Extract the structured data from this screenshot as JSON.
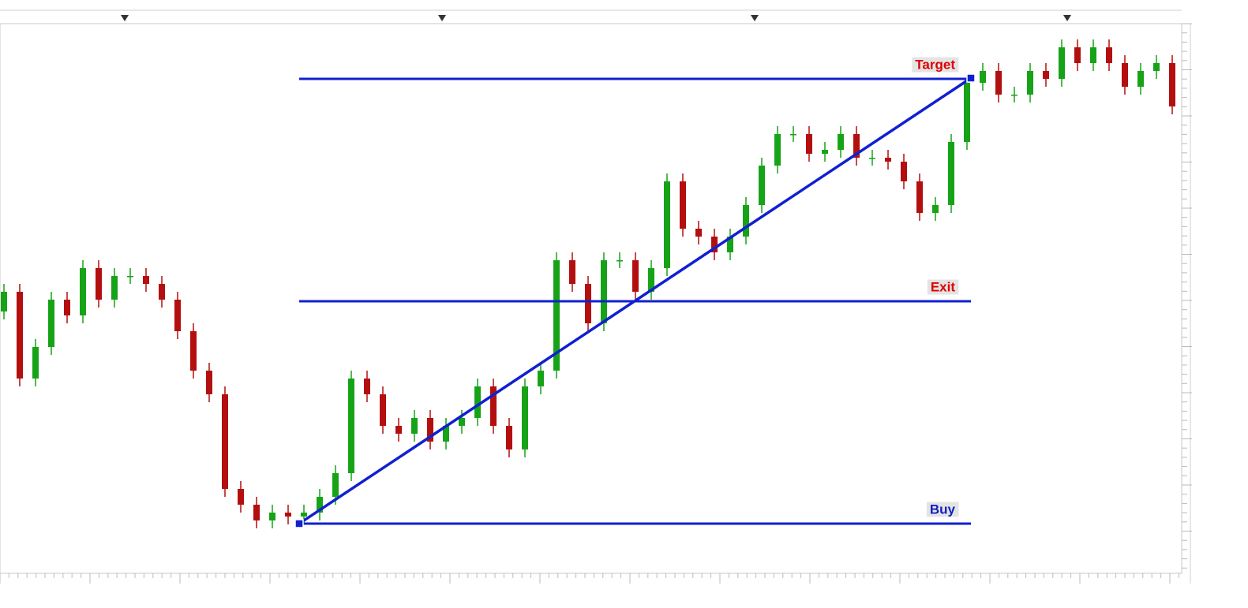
{
  "chart_data": {
    "type": "candlestick",
    "up_color": "#17a317",
    "down_color": "#b30f0f",
    "ylim": [
      0,
      695
    ],
    "open": [
      330,
      355,
      245,
      285,
      345,
      325,
      385,
      345,
      375,
      375,
      365,
      345,
      305,
      255,
      225,
      105,
      85,
      65,
      75,
      70,
      75,
      95,
      125,
      245,
      225,
      185,
      175,
      195,
      165,
      185,
      195,
      235,
      185,
      155,
      235,
      255,
      395,
      365,
      315,
      395,
      395,
      355,
      385,
      495,
      435,
      425,
      405,
      425,
      465,
      515,
      555,
      555,
      530,
      535,
      555,
      525,
      525,
      520,
      495,
      455,
      465,
      545,
      620,
      635,
      605,
      605,
      635,
      625,
      665,
      645,
      665,
      645,
      615,
      635,
      645
    ],
    "high": [
      365,
      365,
      295,
      355,
      355,
      395,
      395,
      385,
      385,
      385,
      375,
      355,
      315,
      265,
      235,
      115,
      95,
      85,
      85,
      85,
      105,
      135,
      255,
      255,
      235,
      195,
      205,
      205,
      195,
      205,
      245,
      245,
      195,
      245,
      265,
      405,
      405,
      375,
      405,
      405,
      405,
      395,
      505,
      505,
      445,
      435,
      435,
      475,
      525,
      565,
      565,
      565,
      545,
      565,
      565,
      535,
      535,
      530,
      505,
      475,
      555,
      630,
      645,
      645,
      615,
      645,
      645,
      675,
      675,
      675,
      675,
      655,
      645,
      655,
      655
    ],
    "low": [
      320,
      235,
      235,
      275,
      315,
      315,
      335,
      335,
      365,
      355,
      335,
      295,
      245,
      215,
      95,
      75,
      55,
      55,
      60,
      60,
      65,
      85,
      115,
      215,
      175,
      165,
      165,
      155,
      155,
      175,
      185,
      175,
      145,
      145,
      225,
      245,
      355,
      305,
      305,
      385,
      345,
      345,
      375,
      425,
      415,
      395,
      395,
      415,
      455,
      505,
      545,
      520,
      520,
      525,
      515,
      515,
      510,
      485,
      445,
      445,
      455,
      535,
      610,
      595,
      595,
      595,
      615,
      615,
      635,
      635,
      635,
      605,
      605,
      625,
      580
    ],
    "close": [
      355,
      245,
      285,
      345,
      325,
      385,
      345,
      375,
      375,
      365,
      345,
      305,
      255,
      225,
      105,
      85,
      65,
      75,
      70,
      75,
      95,
      125,
      245,
      225,
      185,
      175,
      195,
      165,
      185,
      195,
      235,
      185,
      155,
      235,
      255,
      395,
      365,
      315,
      395,
      395,
      355,
      385,
      495,
      435,
      425,
      405,
      425,
      465,
      515,
      555,
      555,
      530,
      535,
      555,
      525,
      525,
      520,
      495,
      455,
      465,
      545,
      620,
      635,
      605,
      605,
      635,
      625,
      665,
      645,
      665,
      645,
      615,
      635,
      645,
      590
    ],
    "line_color": "#1020d0",
    "levels": [
      {
        "label": "Target",
        "value": 625,
        "label_color": "#e00000"
      },
      {
        "label": "Exit",
        "value": 343,
        "label_color": "#e00000"
      },
      {
        "label": "Buy",
        "value": 61,
        "label_color": "#1020c0"
      }
    ],
    "levels_x": [
      18.7,
      61.25
    ],
    "trend_line": {
      "x": [
        18.7,
        61.25
      ],
      "y": [
        61,
        626
      ]
    }
  }
}
